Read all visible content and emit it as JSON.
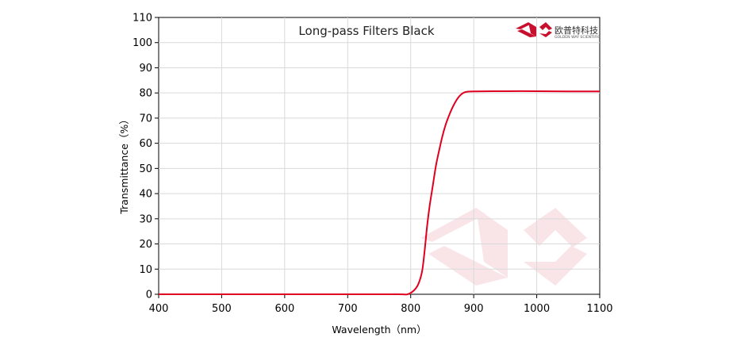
{
  "logo": {
    "cn": "欧普特科技",
    "en": "GOLDEN WAY SCIENTIFIC",
    "color": "#c8102e"
  },
  "chart_data": {
    "type": "line",
    "title": "Long-pass Filters Black",
    "xlabel": "Wavelength（nm）",
    "ylabel": "Transmittance（%）",
    "xlim": [
      400,
      1100
    ],
    "ylim": [
      0,
      110
    ],
    "xticks": [
      400,
      500,
      600,
      700,
      800,
      900,
      1000,
      1100
    ],
    "yticks": [
      0,
      10,
      20,
      30,
      40,
      50,
      60,
      70,
      80,
      90,
      100,
      110
    ],
    "grid": true,
    "line_color": "#e00020",
    "series": [
      {
        "x": [
          400,
          500,
          600,
          700,
          780,
          795,
          805,
          812,
          818,
          822,
          826,
          830,
          835,
          840,
          845,
          850,
          855,
          860,
          865,
          870,
          875,
          880,
          885,
          890,
          900,
          950,
          1000,
          1050,
          1100
        ],
        "y": [
          0,
          0,
          0,
          0,
          0,
          0,
          1.5,
          4,
          9,
          17,
          27,
          35,
          43,
          51,
          57,
          62.5,
          67,
          70.5,
          73.5,
          76,
          78,
          79.4,
          80.2,
          80.5,
          80.6,
          80.7,
          80.7,
          80.6,
          80.6
        ]
      }
    ]
  }
}
